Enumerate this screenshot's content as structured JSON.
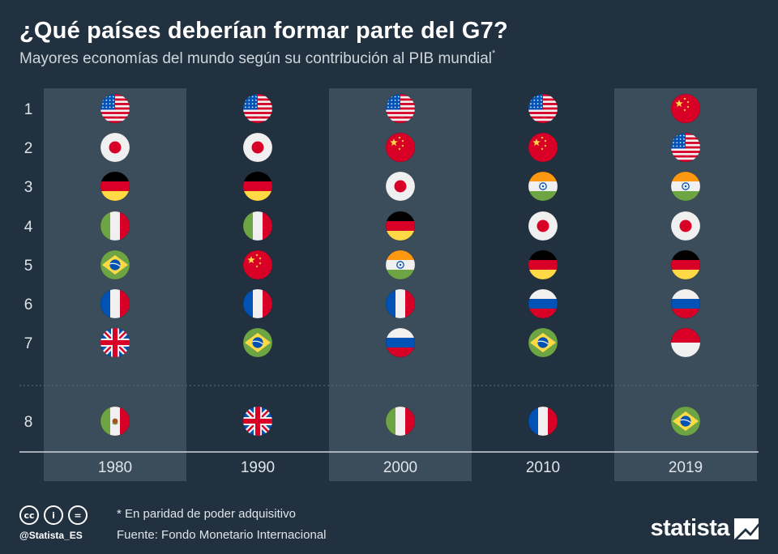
{
  "header": {
    "title": "¿Qué países deberían formar parte del G7?",
    "subtitle": "Mayores economías del mundo según su contribución al PIB mundial",
    "subtitle_mark": "*"
  },
  "chart_data": {
    "type": "table",
    "ranks": [
      "1",
      "2",
      "3",
      "4",
      "5",
      "6",
      "7",
      "8"
    ],
    "years": [
      "1980",
      "1990",
      "2000",
      "2010",
      "2019"
    ],
    "highlighted_years": [
      "1980",
      "2000",
      "2019"
    ],
    "rankings": [
      [
        "usa",
        "japan",
        "germany",
        "italy",
        "brazil",
        "france",
        "uk",
        "mexico"
      ],
      [
        "usa",
        "japan",
        "germany",
        "italy",
        "china",
        "france",
        "brazil",
        "uk"
      ],
      [
        "usa",
        "china",
        "japan",
        "germany",
        "india",
        "france",
        "russia",
        "italy"
      ],
      [
        "usa",
        "china",
        "india",
        "japan",
        "germany",
        "russia",
        "brazil",
        "france"
      ],
      [
        "china",
        "usa",
        "india",
        "japan",
        "germany",
        "russia",
        "indonesia",
        "brazil"
      ]
    ]
  },
  "footer": {
    "cc_icons": [
      "cc-icon",
      "by-icon",
      "nd-icon"
    ],
    "cc_glyphs": [
      "cc",
      "i",
      "="
    ],
    "handle": "@Statista_ES",
    "note": "* En paridad de poder adquisitivo",
    "source": "Fuente: Fondo Monetario Internacional",
    "brand": "statista"
  },
  "colors": {
    "background": "#213140",
    "column_highlight": "#3b4c5a",
    "divider": "#cfd6dc"
  }
}
